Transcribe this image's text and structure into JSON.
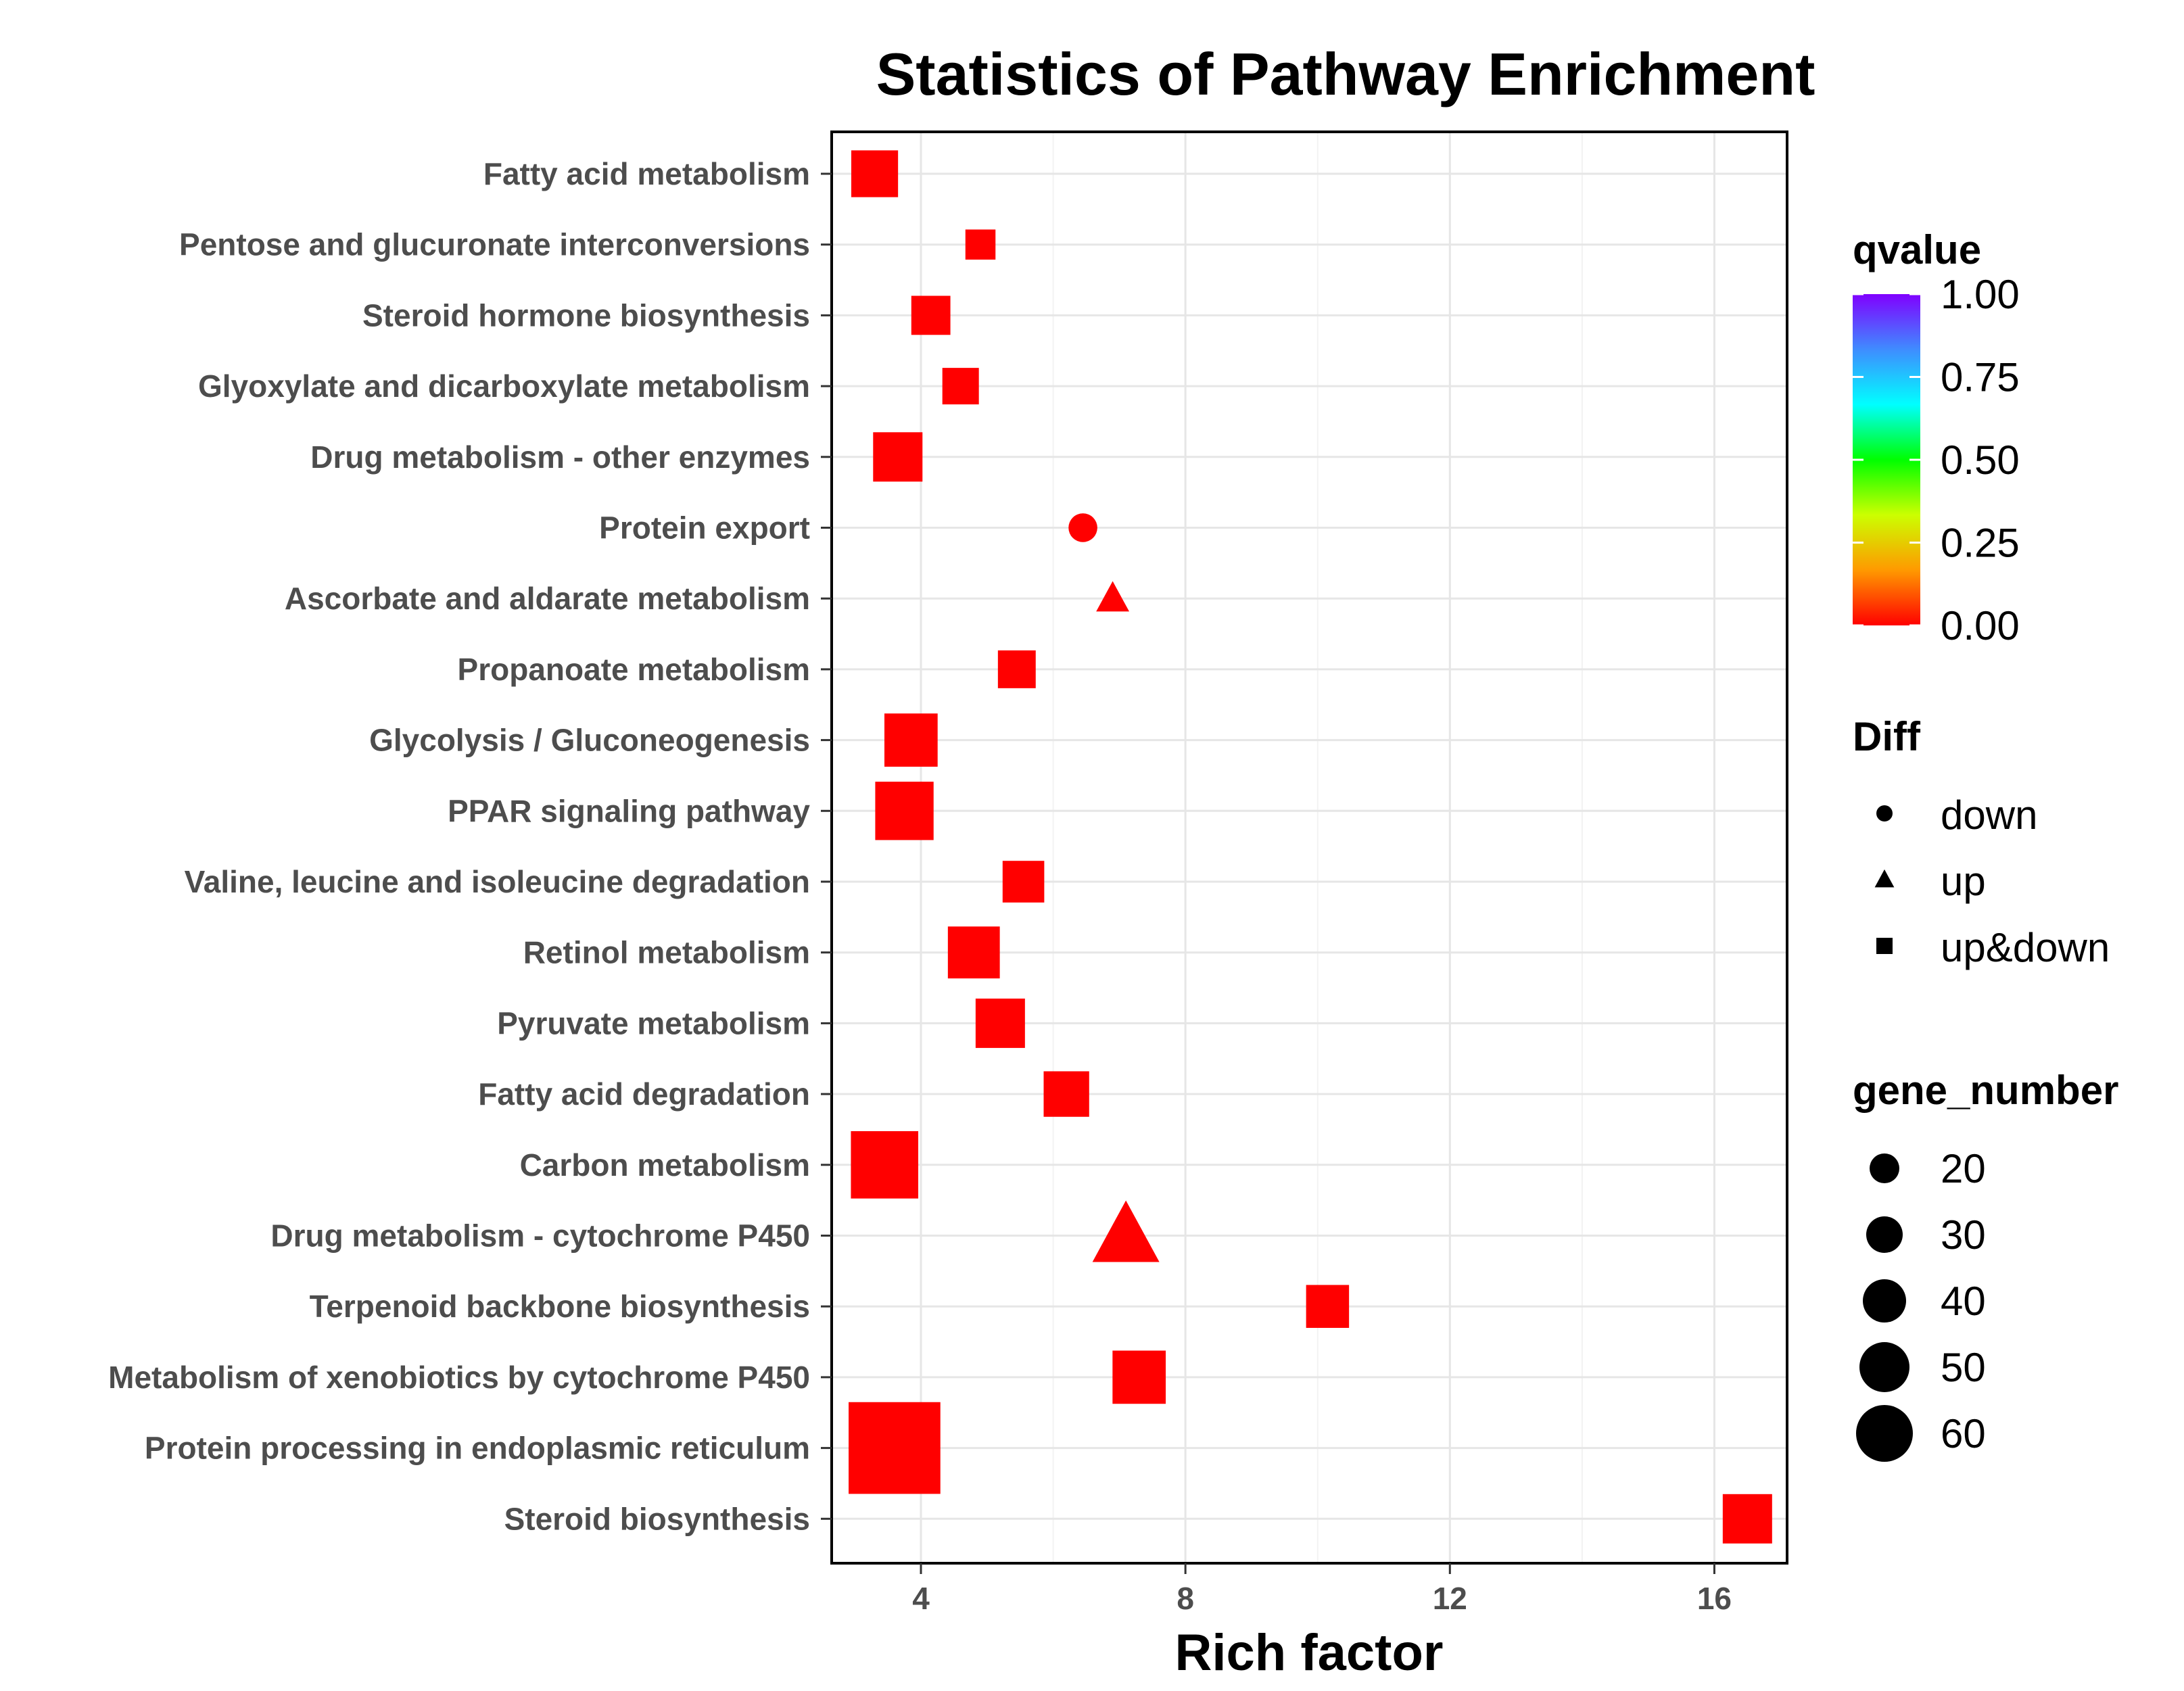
{
  "chart_data": {
    "type": "scatter",
    "title": "Statistics of Pathway Enrichment",
    "xlabel": "Rich factor",
    "ylabel": "",
    "xlim": [
      2.65,
      17.1
    ],
    "x_ticks": [
      4,
      8,
      12,
      16
    ],
    "grid": true,
    "colors": {
      "low": "#ff0000",
      "marker": "#ff0000"
    },
    "categories": [
      "Fatty acid metabolism",
      "Pentose and glucuronate interconversions",
      "Steroid hormone biosynthesis",
      "Glyoxylate and dicarboxylate metabolism",
      "Drug metabolism - other enzymes",
      "Protein export",
      "Ascorbate and aldarate metabolism",
      "Propanoate metabolism",
      "Glycolysis / Gluconeogenesis",
      "PPAR signaling pathway",
      "Valine, leucine and isoleucine degradation",
      "Retinol metabolism",
      "Pyruvate metabolism",
      "Fatty acid degradation",
      "Carbon metabolism",
      "Drug metabolism - cytochrome P450",
      "Terpenoid backbone biosynthesis",
      "Metabolism of xenobiotics by cytochrome P450",
      "Protein processing in endoplasmic reticulum",
      "Steroid biosynthesis"
    ],
    "points": [
      {
        "pathway": "Fatty acid metabolism",
        "rich_factor": 3.3,
        "gene_number": 28,
        "diff": "up&down",
        "qvalue": 0.0
      },
      {
        "pathway": "Pentose and glucuronate interconversions",
        "rich_factor": 4.9,
        "gene_number": 15,
        "diff": "up&down",
        "qvalue": 0.0
      },
      {
        "pathway": "Steroid hormone biosynthesis",
        "rich_factor": 4.15,
        "gene_number": 22,
        "diff": "up&down",
        "qvalue": 0.0
      },
      {
        "pathway": "Glyoxylate and dicarboxylate metabolism",
        "rich_factor": 4.6,
        "gene_number": 20,
        "diff": "up&down",
        "qvalue": 0.0
      },
      {
        "pathway": "Drug metabolism - other enzymes",
        "rich_factor": 3.65,
        "gene_number": 30,
        "diff": "up&down",
        "qvalue": 0.0
      },
      {
        "pathway": "Protein export",
        "rich_factor": 6.45,
        "gene_number": 14,
        "diff": "down",
        "qvalue": 0.0
      },
      {
        "pathway": "Ascorbate and aldarate metabolism",
        "rich_factor": 6.9,
        "gene_number": 13,
        "diff": "up",
        "qvalue": 0.0
      },
      {
        "pathway": "Propanoate metabolism",
        "rich_factor": 5.45,
        "gene_number": 21,
        "diff": "up&down",
        "qvalue": 0.0
      },
      {
        "pathway": "Glycolysis / Gluconeogenesis",
        "rich_factor": 3.85,
        "gene_number": 33,
        "diff": "up&down",
        "qvalue": 0.0
      },
      {
        "pathway": "PPAR signaling pathway",
        "rich_factor": 3.75,
        "gene_number": 37,
        "diff": "up&down",
        "qvalue": 0.0
      },
      {
        "pathway": "Valine, leucine and isoleucine degradation",
        "rich_factor": 5.55,
        "gene_number": 24,
        "diff": "up&down",
        "qvalue": 0.0
      },
      {
        "pathway": "Retinol metabolism",
        "rich_factor": 4.8,
        "gene_number": 32,
        "diff": "up&down",
        "qvalue": 0.0
      },
      {
        "pathway": "Pyruvate metabolism",
        "rich_factor": 5.2,
        "gene_number": 30,
        "diff": "up&down",
        "qvalue": 0.0
      },
      {
        "pathway": "Fatty acid degradation",
        "rich_factor": 6.2,
        "gene_number": 27,
        "diff": "up&down",
        "qvalue": 0.0
      },
      {
        "pathway": "Carbon metabolism",
        "rich_factor": 3.45,
        "gene_number": 44,
        "diff": "up&down",
        "qvalue": 0.0
      },
      {
        "pathway": "Drug metabolism - cytochrome P450",
        "rich_factor": 7.1,
        "gene_number": 35,
        "diff": "up",
        "qvalue": 0.0
      },
      {
        "pathway": "Terpenoid backbone biosynthesis",
        "rich_factor": 10.15,
        "gene_number": 25,
        "diff": "up&down",
        "qvalue": 0.0
      },
      {
        "pathway": "Metabolism of xenobiotics by cytochrome P450",
        "rich_factor": 7.3,
        "gene_number": 33,
        "diff": "up&down",
        "qvalue": 0.0
      },
      {
        "pathway": "Protein processing in endoplasmic reticulum",
        "rich_factor": 3.6,
        "gene_number": 63,
        "diff": "up&down",
        "qvalue": 0.0
      },
      {
        "pathway": "Steroid biosynthesis",
        "rich_factor": 16.5,
        "gene_number": 30,
        "diff": "up&down",
        "qvalue": 0.0
      }
    ],
    "legend": {
      "placement": "right",
      "qvalue": {
        "title": "qvalue",
        "ticks": [
          "1.00",
          "0.75",
          "0.50",
          "0.25",
          "0.00"
        ],
        "tick_values": [
          1.0,
          0.75,
          0.5,
          0.25,
          0.0
        ],
        "gradient_colors": [
          "#8000ff",
          "#3f8cff",
          "#00ffff",
          "#00ff00",
          "#ccff00",
          "#ff9900",
          "#ff0000"
        ]
      },
      "diff": {
        "title": "Diff",
        "items": [
          {
            "label": "down",
            "shape": "circle"
          },
          {
            "label": "up",
            "shape": "triangle"
          },
          {
            "label": "up&down",
            "shape": "square"
          }
        ]
      },
      "gene_number": {
        "title": "gene_number",
        "items": [
          {
            "label": "20",
            "value": 20
          },
          {
            "label": "30",
            "value": 30
          },
          {
            "label": "40",
            "value": 40
          },
          {
            "label": "50",
            "value": 50
          },
          {
            "label": "60",
            "value": 60
          }
        ]
      }
    }
  }
}
